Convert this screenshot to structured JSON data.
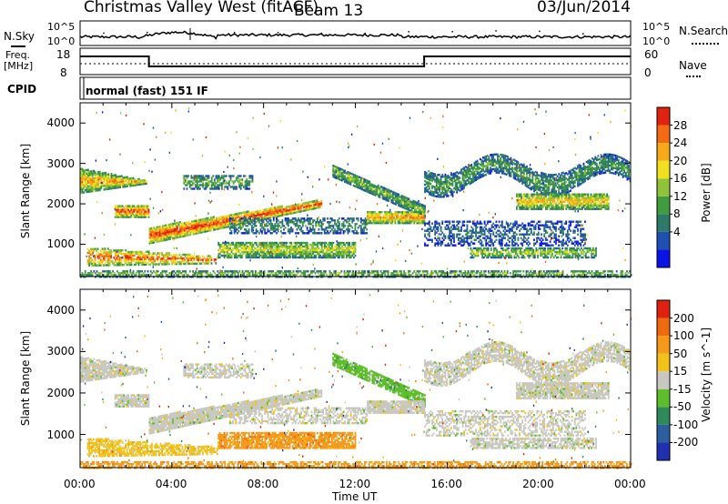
{
  "header": {
    "radar": "Christmas Valley West (fitACF)",
    "beam": "Beam 13",
    "date": "03/Jun/2014"
  },
  "noise_panel": {
    "left_label": "N.Sky",
    "right_label": "N.Search",
    "left_ticks": [
      "10^5",
      "10^0"
    ],
    "right_ticks": [
      "10^5",
      "10^0"
    ]
  },
  "freq_panel": {
    "left_label_1": "Freq.",
    "left_label_2": "[MHz]",
    "right_label": "Nave",
    "left_ticks": [
      "18",
      "8"
    ],
    "right_ticks": [
      "60",
      "0"
    ]
  },
  "cpid": {
    "label": "CPID",
    "mode": "normal (fast) 151 IF"
  },
  "chart_data": [
    {
      "type": "heatmap",
      "title": "Power",
      "ylabel": "Slant Range [km]",
      "xlabel": "Time UT",
      "x_ticks": [
        "00:00",
        "04:00",
        "08:00",
        "12:00",
        "16:00",
        "20:00",
        "00:00"
      ],
      "y_ticks": [
        "1000",
        "2000",
        "3000",
        "4000"
      ],
      "ylim": [
        200,
        4500
      ],
      "xlim_hours": [
        0,
        24
      ],
      "colorbar_label": "Power [dB]",
      "colorbar_ticks": [
        "28",
        "24",
        "20",
        "16",
        "12",
        "8",
        "4"
      ],
      "colorbar_colors": [
        "#0a14e6",
        "#1f4fb0",
        "#2e7a6a",
        "#3f9c3f",
        "#8fc43a",
        "#f0e020",
        "#f7a91c",
        "#f26a14",
        "#e02210"
      ]
    },
    {
      "type": "heatmap",
      "title": "Velocity",
      "ylabel": "Slant Range [km]",
      "xlabel": "Time UT",
      "x_ticks": [
        "00:00",
        "04:00",
        "08:00",
        "12:00",
        "16:00",
        "20:00",
        "00:00"
      ],
      "y_ticks": [
        "1000",
        "2000",
        "3000",
        "4000"
      ],
      "ylim": [
        200,
        4500
      ],
      "xlim_hours": [
        0,
        24
      ],
      "colorbar_label": "Velocity [m s^-1]",
      "colorbar_ticks": [
        "200",
        "100",
        "50",
        "15",
        "-15",
        "-50",
        "-100",
        "-200"
      ],
      "colorbar_colors": [
        "#2030b0",
        "#2d5fa0",
        "#2f8a5a",
        "#5cbf2a",
        "#c8c8c0",
        "#f2c21a",
        "#f59a18",
        "#f06a12",
        "#e02010"
      ]
    }
  ],
  "x_axis": {
    "label": "Time UT",
    "ticks": [
      "00:00",
      "04:00",
      "08:00",
      "12:00",
      "16:00",
      "20:00",
      "00:00"
    ]
  }
}
